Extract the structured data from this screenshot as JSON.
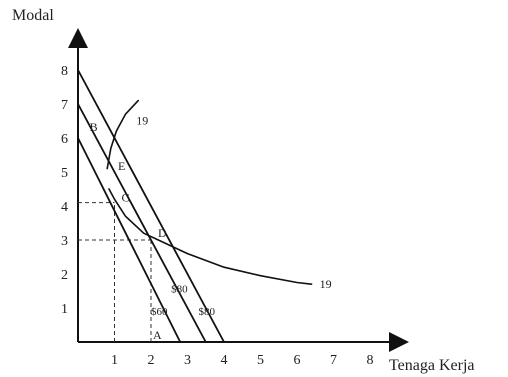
{
  "chart_data": {
    "type": "line",
    "title": "",
    "ylabel": "Modal",
    "xlabel": "Tenaga Kerja",
    "xlim": [
      0,
      8
    ],
    "ylim": [
      0,
      8
    ],
    "x_ticks": [
      "1",
      "2",
      "3",
      "4",
      "5",
      "6",
      "7",
      "8"
    ],
    "y_ticks": [
      "1",
      "2",
      "3",
      "4",
      "5",
      "6",
      "7",
      "8"
    ],
    "grid": false,
    "isocost_lines": [
      {
        "label": "",
        "points": [
          [
            0,
            6
          ],
          [
            2.8,
            0
          ]
        ]
      },
      {
        "label": "",
        "points": [
          [
            0,
            7
          ],
          [
            3.5,
            0
          ]
        ]
      },
      {
        "label": "",
        "points": [
          [
            0,
            8
          ],
          [
            4.0,
            0
          ]
        ]
      }
    ],
    "isocost_notes": [
      "$60",
      "$80",
      "$80"
    ],
    "isoquant": {
      "label": "19",
      "upper_points": [
        [
          0.8,
          5.1
        ],
        [
          0.9,
          5.7
        ],
        [
          1.05,
          6.2
        ],
        [
          1.3,
          6.7
        ],
        [
          1.65,
          7.1
        ]
      ],
      "lower_points": [
        [
          0.85,
          4.5
        ],
        [
          1.0,
          4.2
        ],
        [
          1.3,
          3.7
        ],
        [
          1.8,
          3.2
        ],
        [
          2.2,
          3.0
        ],
        [
          3.0,
          2.6
        ],
        [
          4.0,
          2.2
        ],
        [
          5.0,
          1.95
        ],
        [
          6.0,
          1.75
        ],
        [
          6.4,
          1.7
        ]
      ]
    },
    "points": [
      {
        "label": "B",
        "x": 0.1,
        "y": 6.0
      },
      {
        "label": "E",
        "x": 0.85,
        "y": 5.0
      },
      {
        "label": "C",
        "x": 1.0,
        "y": 4.1
      },
      {
        "label": "D",
        "x": 2.0,
        "y": 3.0
      },
      {
        "label": "A",
        "x": 2.3,
        "y": 0.0
      }
    ],
    "dashed_guides": [
      {
        "x": 1,
        "y": 4.1
      },
      {
        "x": 2,
        "y": 3.0
      }
    ]
  }
}
